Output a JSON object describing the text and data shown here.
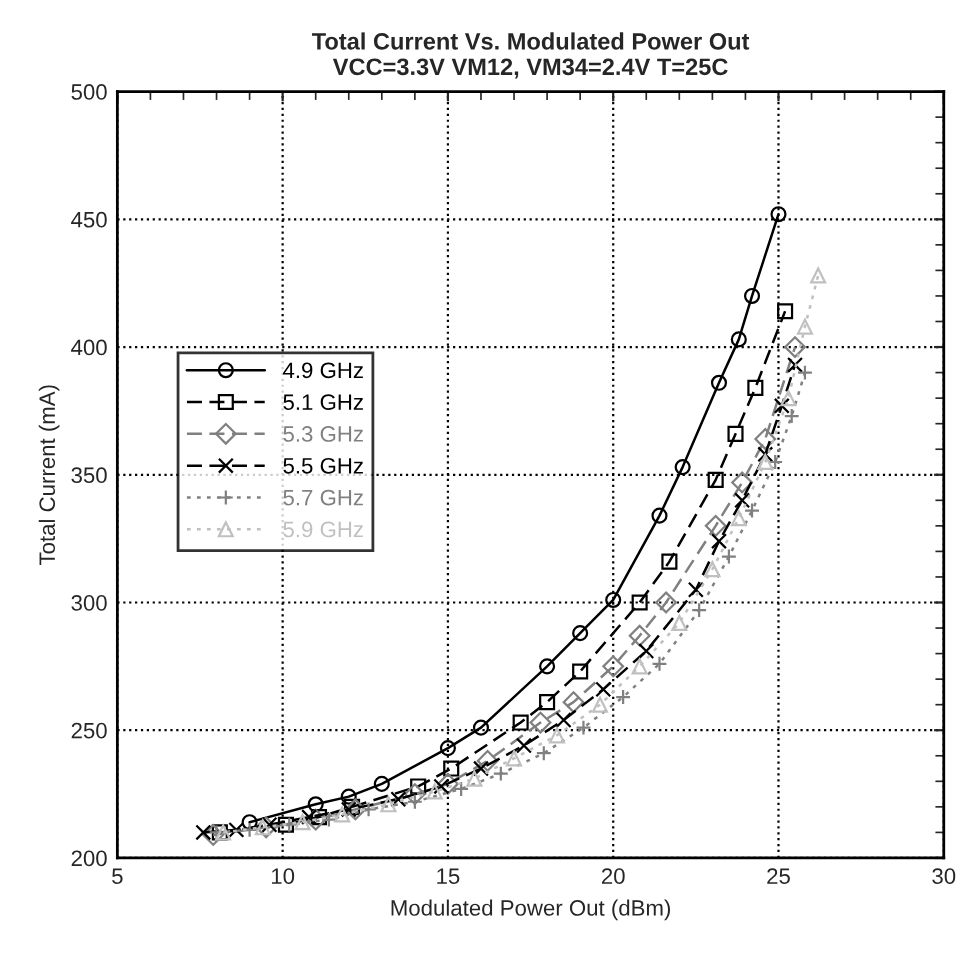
{
  "chart_data": {
    "type": "line",
    "title": "Total Current Vs. Modulated Power Out\nVCC=3.3V VM12, VM34=2.4V T=25C",
    "xlabel": "Modulated Power Out (dBm)",
    "ylabel": "Total Current (mA)",
    "xlim": [
      5,
      30
    ],
    "xticks": [
      5,
      10,
      15,
      20,
      25,
      30
    ],
    "ylim": [
      200,
      500
    ],
    "yticks": [
      200,
      250,
      300,
      350,
      400,
      450,
      500
    ],
    "grid": true,
    "legend": "center left",
    "series": [
      {
        "name": "4.9 GHz",
        "color": "#000000",
        "marker": "circle",
        "line_style": "solid",
        "x": [
          9.0,
          11.0,
          12.0,
          13.0,
          15.0,
          16.0,
          18.0,
          19.0,
          20.0,
          21.4,
          22.1,
          23.2,
          23.8,
          24.2,
          25.0
        ],
        "values": [
          214,
          221,
          224,
          229,
          243,
          251,
          275,
          288,
          301,
          334,
          353,
          386,
          403,
          420,
          452
        ]
      },
      {
        "name": "5.1 GHz",
        "color": "#000000",
        "marker": "square",
        "line_style": "dashed",
        "x": [
          8.1,
          10.1,
          11.1,
          12.1,
          14.1,
          15.1,
          17.2,
          18.0,
          19.0,
          20.8,
          21.7,
          23.1,
          23.7,
          24.3,
          25.2
        ],
        "values": [
          210,
          213,
          216,
          220,
          228,
          235,
          253,
          261,
          273,
          300,
          316,
          348,
          366,
          384,
          414
        ]
      },
      {
        "name": "5.3 GHz",
        "color": "#808080",
        "marker": "diamond",
        "line_style": "dashed",
        "x": [
          7.9,
          9.5,
          11.0,
          12.2,
          14.0,
          15.0,
          16.2,
          17.8,
          18.8,
          20.0,
          20.8,
          21.6,
          23.1,
          23.9,
          24.6,
          25.5
        ],
        "values": [
          209,
          212,
          215,
          219,
          225,
          229,
          238,
          253,
          261,
          275,
          287,
          300,
          330,
          347,
          364,
          400
        ]
      },
      {
        "name": "5.5 GHz",
        "color": "#000000",
        "marker": "cross",
        "line_style": "dashed",
        "x": [
          7.6,
          8.6,
          9.6,
          10.8,
          12.0,
          13.5,
          14.8,
          16.0,
          17.3,
          18.5,
          19.7,
          21.0,
          22.5,
          23.2,
          23.9,
          24.6,
          25.1,
          25.5
        ],
        "values": [
          210,
          211,
          213,
          216,
          219,
          223,
          228,
          235,
          244,
          254,
          266,
          281,
          305,
          324,
          340,
          358,
          377,
          393
        ]
      },
      {
        "name": "5.7 GHz",
        "color": "#808080",
        "marker": "plus",
        "line_style": "dotted",
        "x": [
          8.0,
          9.0,
          10.2,
          11.4,
          12.6,
          14.0,
          15.4,
          16.6,
          17.9,
          19.1,
          20.3,
          21.4,
          22.6,
          23.5,
          24.2,
          24.9,
          25.4,
          25.8
        ],
        "values": [
          210,
          211,
          213,
          215,
          219,
          222,
          227,
          233,
          241,
          251,
          263,
          276,
          297,
          318,
          336,
          355,
          373,
          390
        ]
      },
      {
        "name": "5.9 GHz",
        "color": "#c0c0c0",
        "marker": "triangle",
        "line_style": "dotted",
        "x": [
          8.2,
          9.4,
          10.6,
          11.8,
          13.2,
          14.6,
          15.8,
          17.0,
          18.3,
          19.6,
          20.8,
          22.0,
          23.0,
          23.8,
          24.6,
          25.3,
          25.8,
          26.2
        ],
        "values": [
          210,
          212,
          214,
          217,
          221,
          226,
          231,
          239,
          248,
          260,
          275,
          292,
          313,
          333,
          355,
          380,
          408,
          428
        ]
      }
    ]
  }
}
